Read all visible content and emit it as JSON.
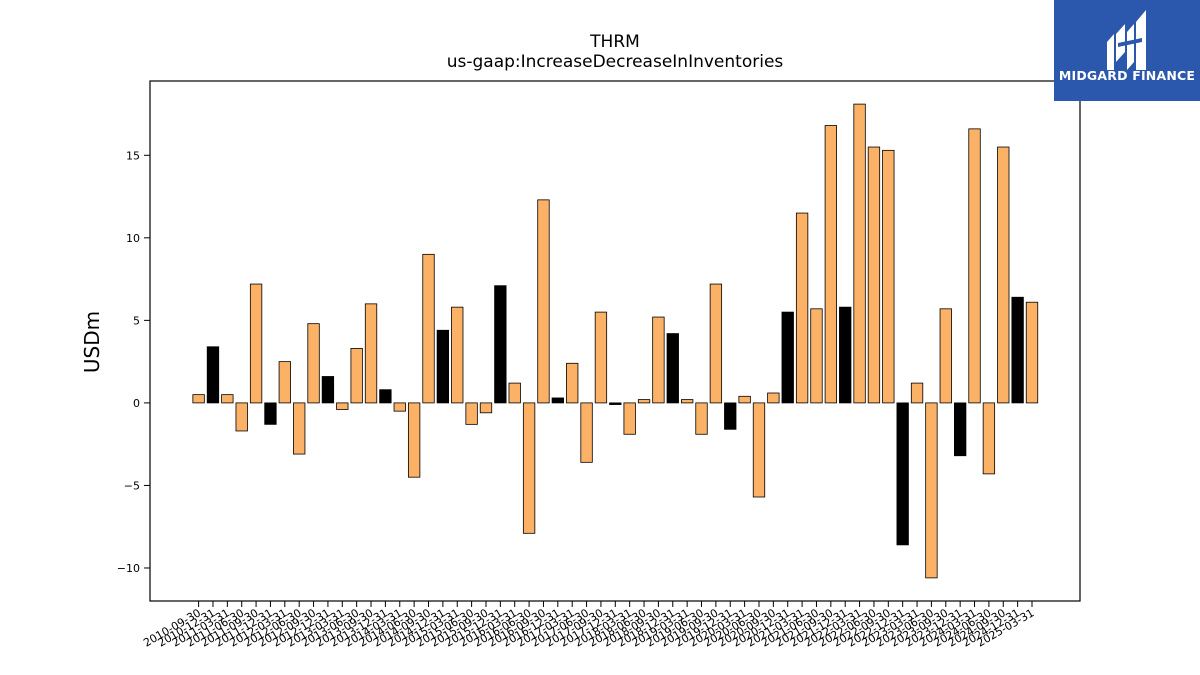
{
  "title": "THRM",
  "subtitle": "us-gaap:IncreaseDecreaseInInventories",
  "logo_text": "MIDGARD FINANCE",
  "colors": {
    "positive_bar": "#fbb266",
    "highlight_bar": "#000000",
    "logo_bg": "#2b57ad"
  },
  "chart_data": {
    "type": "bar",
    "title": "THRM",
    "subtitle": "us-gaap:IncreaseDecreaseInInventories",
    "xlabel": "",
    "ylabel": "USDm",
    "ylim": [
      -12,
      19.5
    ],
    "yticks": [
      -10,
      -5,
      0,
      5,
      10,
      15
    ],
    "grid": false,
    "categories": [
      "2010-09-30",
      "2010-12-31",
      "2011-03-31",
      "2011-06-30",
      "2011-09-30",
      "2011-12-31",
      "2012-03-31",
      "2012-06-30",
      "2012-09-30",
      "2012-12-31",
      "2013-03-31",
      "2013-06-30",
      "2013-09-30",
      "2013-12-31",
      "2014-03-31",
      "2014-06-30",
      "2014-09-30",
      "2014-12-31",
      "2015-03-31",
      "2015-06-30",
      "2015-09-30",
      "2015-12-31",
      "2016-03-31",
      "2016-06-30",
      "2016-09-30",
      "2016-12-31",
      "2017-03-31",
      "2017-06-30",
      "2017-09-30",
      "2017-12-31",
      "2018-03-31",
      "2018-06-30",
      "2018-09-30",
      "2018-12-31",
      "2019-03-31",
      "2019-06-30",
      "2019-09-30",
      "2019-12-31",
      "2020-03-31",
      "2020-06-30",
      "2020-09-30",
      "2020-12-31",
      "2021-03-31",
      "2021-06-30",
      "2021-09-30",
      "2021-12-31",
      "2022-03-31",
      "2022-06-30",
      "2022-09-30",
      "2022-12-31",
      "2023-03-31",
      "2023-06-30",
      "2023-09-30",
      "2023-12-31",
      "2024-03-31",
      "2024-06-30",
      "2024-09-30",
      "2024-12-31",
      "2025-03-31"
    ],
    "values": [
      0.5,
      3.4,
      0.5,
      -1.7,
      7.2,
      -1.3,
      2.5,
      -3.1,
      4.8,
      1.6,
      -0.4,
      3.3,
      6.0,
      0.8,
      -0.5,
      -4.5,
      9.0,
      4.4,
      5.8,
      -1.3,
      -0.6,
      7.1,
      1.2,
      -7.9,
      12.3,
      0.3,
      2.4,
      -3.6,
      5.5,
      -0.1,
      -1.9,
      0.2,
      5.2,
      4.2,
      0.2,
      -1.9,
      7.2,
      -1.6,
      0.4,
      -5.7,
      0.6,
      5.5,
      11.5,
      5.7,
      16.8,
      5.8,
      18.1,
      15.5,
      15.3,
      -8.6,
      1.2,
      -10.6,
      5.7,
      -3.2,
      16.6,
      -4.3,
      15.5,
      6.4,
      6.1
    ],
    "highlight": [
      false,
      true,
      false,
      false,
      false,
      true,
      false,
      false,
      false,
      true,
      false,
      false,
      false,
      true,
      false,
      false,
      false,
      true,
      false,
      false,
      false,
      true,
      false,
      false,
      false,
      true,
      false,
      false,
      false,
      true,
      false,
      false,
      false,
      true,
      false,
      false,
      false,
      true,
      false,
      false,
      false,
      true,
      false,
      false,
      false,
      true,
      false,
      false,
      false,
      true,
      false,
      false,
      false,
      true,
      false,
      false,
      false,
      true,
      false
    ]
  }
}
